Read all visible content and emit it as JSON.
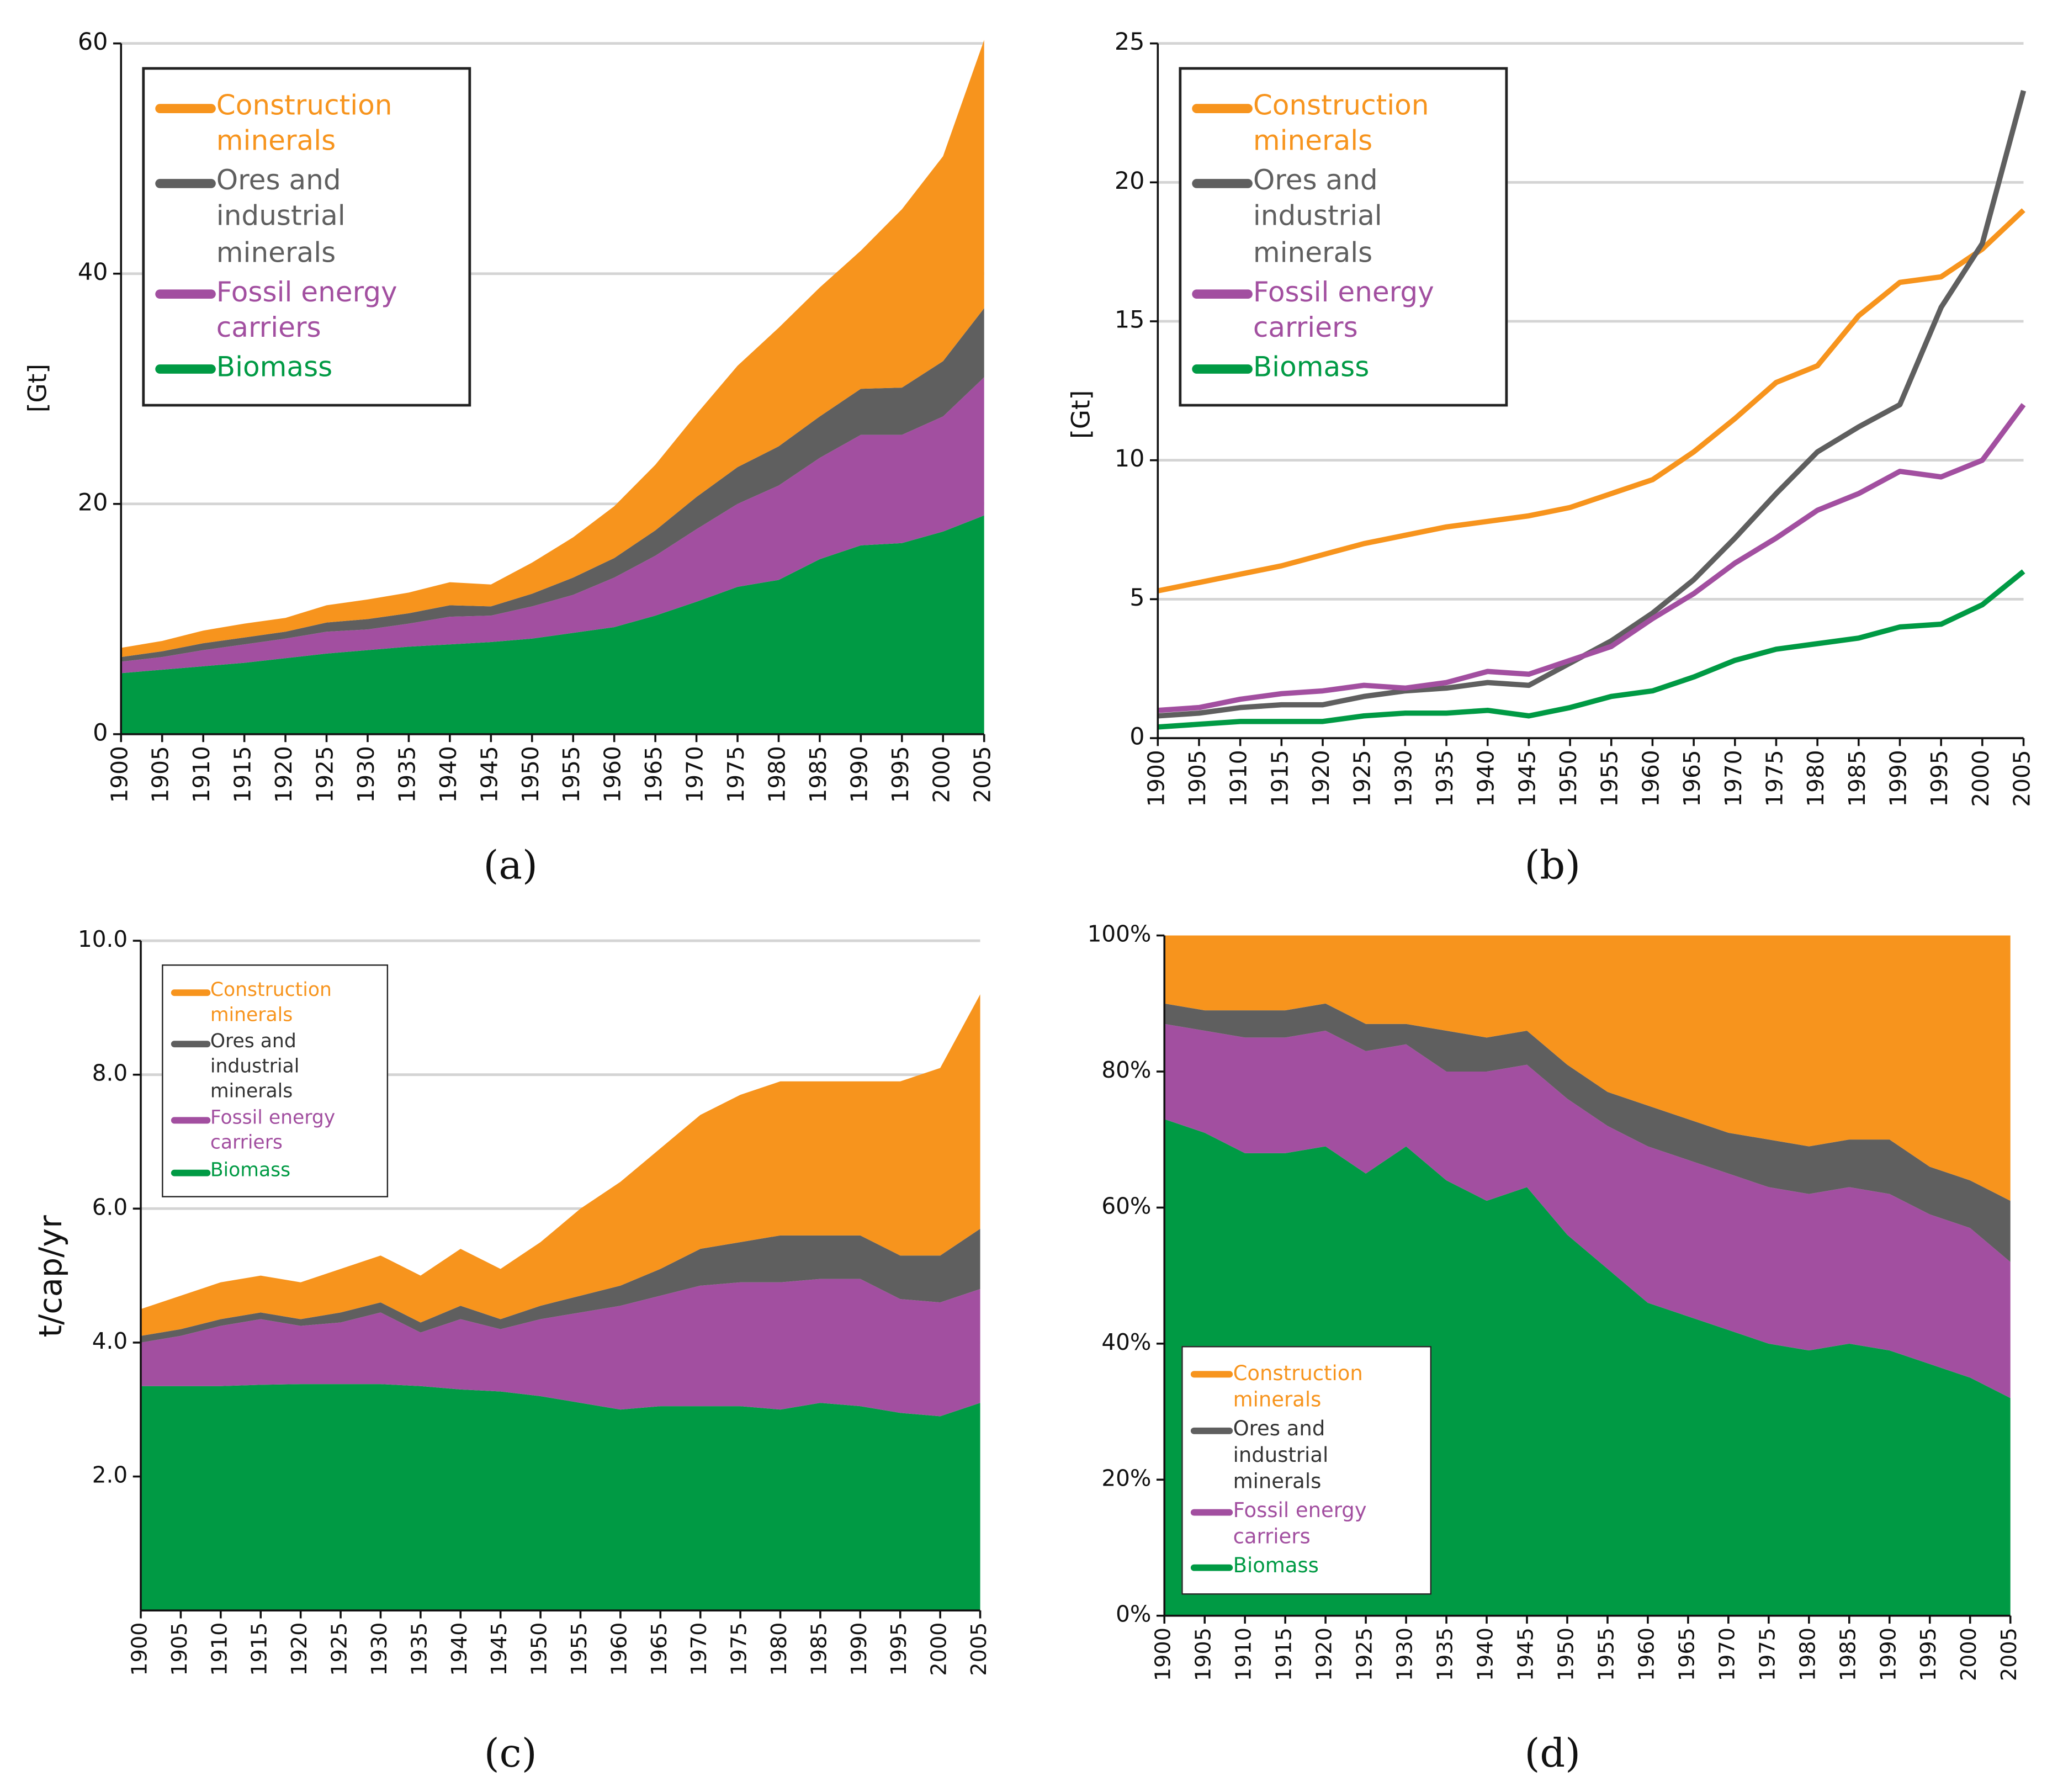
{
  "chart_data": [
    {
      "type": "area",
      "stacked": true,
      "panel_label": "(a)",
      "y_label": "[Gt]",
      "legend": "upper left",
      "grid": true,
      "x": [
        1900,
        1905,
        1910,
        1915,
        1920,
        1925,
        1930,
        1935,
        1940,
        1945,
        1950,
        1955,
        1960,
        1965,
        1970,
        1975,
        1980,
        1985,
        1990,
        1995,
        2000,
        2005
      ],
      "xlim": [
        1900,
        2005
      ],
      "xticks": [
        1900,
        1905,
        1910,
        1915,
        1920,
        1925,
        1930,
        1935,
        1940,
        1945,
        1950,
        1955,
        1960,
        1965,
        1970,
        1975,
        1980,
        1985,
        1990,
        1995,
        2000,
        2005
      ],
      "ylim": [
        0,
        60
      ],
      "yticks": [
        0,
        20,
        40,
        60
      ],
      "series": [
        {
          "name": "Construction minerals",
          "color": "#f7941d",
          "values": [
            0.8,
            0.9,
            1.1,
            1.2,
            1.2,
            1.5,
            1.7,
            1.8,
            2.0,
            1.9,
            2.7,
            3.5,
            4.5,
            5.7,
            7.2,
            8.8,
            10.3,
            11.2,
            12.0,
            15.5,
            17.8,
            23.3
          ]
        },
        {
          "name": "Ores and industrial minerals",
          "color": "#5f5f5f",
          "values": [
            0.4,
            0.5,
            0.6,
            0.6,
            0.6,
            0.8,
            0.9,
            0.9,
            1.0,
            0.8,
            1.1,
            1.5,
            1.7,
            2.2,
            2.8,
            3.2,
            3.4,
            3.6,
            4.0,
            4.1,
            4.8,
            6.0
          ]
        },
        {
          "name": "Fossil energy carriers",
          "color": "#a24fa0",
          "values": [
            1.0,
            1.1,
            1.4,
            1.6,
            1.7,
            1.9,
            1.8,
            2.0,
            2.4,
            2.3,
            2.8,
            3.3,
            4.3,
            5.2,
            6.3,
            7.2,
            8.2,
            8.8,
            9.6,
            9.4,
            10.0,
            12.0
          ]
        },
        {
          "name": "Biomass",
          "color": "#009a44",
          "values": [
            5.3,
            5.6,
            5.9,
            6.2,
            6.6,
            7.0,
            7.3,
            7.6,
            7.8,
            8.0,
            8.3,
            8.8,
            9.3,
            10.3,
            11.5,
            12.8,
            13.4,
            15.2,
            16.4,
            16.6,
            17.6,
            19.0
          ]
        }
      ]
    },
    {
      "type": "line",
      "panel_label": "(b)",
      "y_label": "[Gt]",
      "legend": "upper left",
      "grid": true,
      "x": [
        1900,
        1905,
        1910,
        1915,
        1920,
        1925,
        1930,
        1935,
        1940,
        1945,
        1950,
        1955,
        1960,
        1965,
        1970,
        1975,
        1980,
        1985,
        1990,
        1995,
        2000,
        2005
      ],
      "xlim": [
        1900,
        2005
      ],
      "xticks": [
        1900,
        1905,
        1910,
        1915,
        1920,
        1925,
        1930,
        1935,
        1940,
        1945,
        1950,
        1955,
        1960,
        1965,
        1970,
        1975,
        1980,
        1985,
        1990,
        1995,
        2000,
        2005
      ],
      "ylim": [
        0,
        25
      ],
      "yticks": [
        0,
        5,
        10,
        15,
        20,
        25
      ],
      "series": [
        {
          "name": "Construction minerals",
          "color": "#f7941d",
          "values": [
            5.3,
            5.6,
            5.9,
            6.2,
            6.6,
            7.0,
            7.3,
            7.6,
            7.8,
            8.0,
            8.3,
            8.8,
            9.3,
            10.3,
            11.5,
            12.8,
            13.4,
            15.2,
            16.4,
            16.6,
            17.6,
            19.0
          ]
        },
        {
          "name": "Ores and industrial minerals",
          "color": "#5f5f5f",
          "values": [
            0.8,
            0.9,
            1.1,
            1.2,
            1.2,
            1.5,
            1.7,
            1.8,
            2.0,
            1.9,
            2.7,
            3.5,
            4.5,
            5.7,
            7.2,
            8.8,
            10.3,
            11.2,
            12.0,
            15.5,
            17.8,
            23.3
          ]
        },
        {
          "name": "Fossil energy carriers",
          "color": "#a24fa0",
          "values": [
            1.0,
            1.1,
            1.4,
            1.6,
            1.7,
            1.9,
            1.8,
            2.0,
            2.4,
            2.3,
            2.8,
            3.3,
            4.3,
            5.2,
            6.3,
            7.2,
            8.2,
            8.8,
            9.6,
            9.4,
            10.0,
            12.0
          ]
        },
        {
          "name": "Biomass",
          "color": "#009a44",
          "values": [
            0.4,
            0.5,
            0.6,
            0.6,
            0.6,
            0.8,
            0.9,
            0.9,
            1.0,
            0.8,
            1.1,
            1.5,
            1.7,
            2.2,
            2.8,
            3.2,
            3.4,
            3.6,
            4.0,
            4.1,
            4.8,
            6.0
          ]
        }
      ]
    },
    {
      "type": "area",
      "stacked": true,
      "panel_label": "(c)",
      "y_label": "t/cap/yr",
      "legend": "upper left",
      "grid": true,
      "x": [
        1900,
        1905,
        1910,
        1915,
        1920,
        1925,
        1930,
        1935,
        1940,
        1945,
        1950,
        1955,
        1960,
        1965,
        1970,
        1975,
        1980,
        1985,
        1990,
        1995,
        2000,
        2005
      ],
      "xlim": [
        1900,
        2005
      ],
      "xticks": [
        1900,
        1905,
        1910,
        1915,
        1920,
        1925,
        1930,
        1935,
        1940,
        1945,
        1950,
        1955,
        1960,
        1965,
        1970,
        1975,
        1980,
        1985,
        1990,
        1995,
        2000,
        2005
      ],
      "ylim": [
        0,
        10
      ],
      "yticks": [
        {
          "value": 2,
          "label": "2.0"
        },
        {
          "value": 4,
          "label": "4.0"
        },
        {
          "value": 6,
          "label": "6.0"
        },
        {
          "value": 8,
          "label": "8.0"
        },
        {
          "value": 10,
          "label": "10.0"
        }
      ],
      "series": [
        {
          "name": "Construction minerals",
          "color": "#f7941d",
          "values": [
            0.4,
            0.5,
            0.55,
            0.55,
            0.55,
            0.65,
            0.7,
            0.7,
            0.85,
            0.75,
            0.95,
            1.3,
            1.55,
            1.8,
            2.0,
            2.2,
            2.3,
            2.3,
            2.3,
            2.6,
            2.8,
            3.5
          ]
        },
        {
          "name": "Ores and industrial minerals",
          "color": "#5f5f5f",
          "values": [
            0.1,
            0.1,
            0.1,
            0.1,
            0.1,
            0.15,
            0.15,
            0.15,
            0.2,
            0.15,
            0.2,
            0.25,
            0.3,
            0.4,
            0.55,
            0.6,
            0.7,
            0.65,
            0.65,
            0.65,
            0.7,
            0.9
          ]
        },
        {
          "name": "Fossil energy carriers",
          "color": "#a24fa0",
          "values": [
            0.65,
            0.75,
            0.9,
            0.98,
            0.87,
            0.92,
            1.07,
            0.8,
            1.05,
            0.93,
            1.15,
            1.35,
            1.55,
            1.65,
            1.8,
            1.85,
            1.9,
            1.85,
            1.9,
            1.7,
            1.7,
            1.7
          ]
        },
        {
          "name": "Biomass",
          "color": "#009a44",
          "values": [
            3.35,
            3.35,
            3.35,
            3.37,
            3.38,
            3.38,
            3.38,
            3.35,
            3.3,
            3.27,
            3.2,
            3.1,
            3.0,
            3.05,
            3.05,
            3.05,
            3.0,
            3.1,
            3.05,
            2.95,
            2.9,
            3.1
          ]
        }
      ]
    },
    {
      "type": "area",
      "stacked": true,
      "panel_label": "(d)",
      "legend": "lower left",
      "grid": false,
      "x": [
        1900,
        1905,
        1910,
        1915,
        1920,
        1925,
        1930,
        1935,
        1940,
        1945,
        1950,
        1955,
        1960,
        1965,
        1970,
        1975,
        1980,
        1985,
        1990,
        1995,
        2000,
        2005
      ],
      "xlim": [
        1900,
        2005
      ],
      "xticks": [
        1900,
        1905,
        1910,
        1915,
        1920,
        1925,
        1930,
        1935,
        1940,
        1945,
        1950,
        1955,
        1960,
        1965,
        1970,
        1975,
        1980,
        1985,
        1990,
        1995,
        2000,
        2005
      ],
      "ylim": [
        0,
        100
      ],
      "yticks": [
        {
          "value": 0,
          "label": "0%"
        },
        {
          "value": 20,
          "label": "20%"
        },
        {
          "value": 40,
          "label": "40%"
        },
        {
          "value": 60,
          "label": "60%"
        },
        {
          "value": 80,
          "label": "80%"
        },
        {
          "value": 100,
          "label": "100%"
        }
      ],
      "series": [
        {
          "name": "Construction minerals",
          "color": "#f7941d",
          "values": [
            10,
            11,
            11,
            11,
            10,
            13,
            13,
            14,
            15,
            14,
            19,
            23,
            25,
            27,
            29,
            30,
            31,
            30,
            30,
            34,
            36,
            39
          ]
        },
        {
          "name": "Ores and industrial minerals",
          "color": "#5f5f5f",
          "values": [
            3,
            3,
            4,
            4,
            4,
            4,
            3,
            6,
            5,
            5,
            5,
            5,
            6,
            6,
            6,
            7,
            7,
            7,
            8,
            7,
            7,
            9
          ]
        },
        {
          "name": "Fossil energy carriers",
          "color": "#a24fa0",
          "values": [
            14,
            15,
            17,
            17,
            17,
            18,
            15,
            16,
            19,
            18,
            20,
            21,
            23,
            23,
            23,
            23,
            23,
            23,
            23,
            22,
            22,
            20
          ]
        },
        {
          "name": "Biomass",
          "color": "#009a44",
          "values": [
            73,
            71,
            68,
            68,
            69,
            65,
            69,
            64,
            61,
            63,
            56,
            51,
            46,
            44,
            42,
            40,
            39,
            40,
            39,
            37,
            35,
            32
          ]
        }
      ]
    }
  ]
}
